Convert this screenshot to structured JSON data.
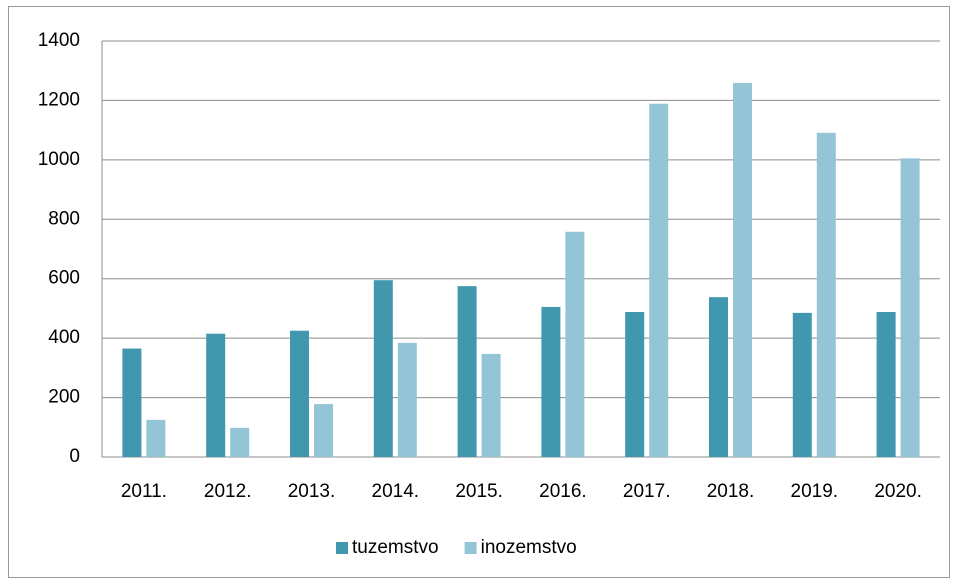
{
  "chart_data": {
    "type": "bar",
    "categories": [
      "2011.",
      "2012.",
      "2013.",
      "2014.",
      "2015.",
      "2016.",
      "2017.",
      "2018.",
      "2019.",
      "2020."
    ],
    "series": [
      {
        "name": "tuzemstvo",
        "color": "#4197ad",
        "values": [
          365,
          415,
          425,
          595,
          575,
          505,
          488,
          538,
          485,
          488
        ]
      },
      {
        "name": "inozemstvo",
        "color": "#93c5d6",
        "values": [
          125,
          98,
          178,
          384,
          347,
          758,
          1189,
          1259,
          1091,
          1005
        ]
      }
    ],
    "ylim": [
      0,
      1400
    ],
    "yticks": [
      0,
      200,
      400,
      600,
      800,
      1000,
      1200,
      1400
    ],
    "grid": true,
    "legend": "bottom"
  }
}
